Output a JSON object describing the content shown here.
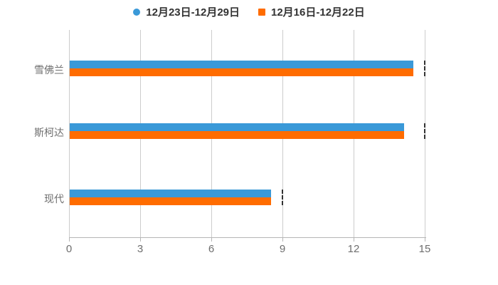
{
  "legend": {
    "items": [
      {
        "label": "12月23日-12月29日",
        "color": "#3A99D8",
        "marker": "circle"
      },
      {
        "label": "12月16日-12月22日",
        "color": "#FF6C00",
        "marker": "square"
      }
    ]
  },
  "chart_data": {
    "type": "bar",
    "orientation": "horizontal",
    "title": "",
    "xlabel": "",
    "ylabel": "",
    "categories": [
      "雪佛兰",
      "斯柯达",
      "现代"
    ],
    "series": [
      {
        "name": "12月23日-12月29日",
        "color": "#3A99D8",
        "values": [
          14.5,
          14.1,
          8.5
        ]
      },
      {
        "name": "12月16日-12月22日",
        "color": "#FF6C00",
        "values": [
          14.5,
          14.1,
          8.5
        ]
      }
    ],
    "x_ticks": [
      0,
      3,
      6,
      9,
      12,
      15
    ],
    "xlim": [
      0,
      15
    ],
    "grid": true,
    "legend_position": "top",
    "gridline_color": "#cccccc",
    "value_marks_at": [
      15,
      15,
      9
    ]
  }
}
